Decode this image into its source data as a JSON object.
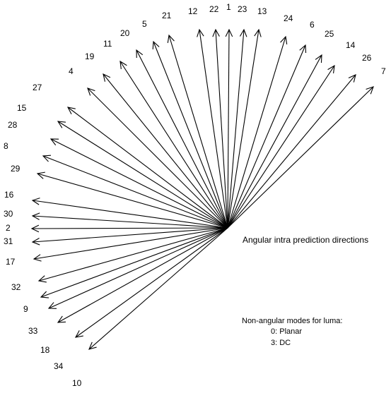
{
  "caption": "Angular intra prediction directions",
  "notes": {
    "title": "Non-angular modes for luma:",
    "modes": [
      "0: Planar",
      "3: DC"
    ]
  },
  "directions": [
    {
      "mode": "10"
    },
    {
      "mode": "34"
    },
    {
      "mode": "18"
    },
    {
      "mode": "33"
    },
    {
      "mode": "9"
    },
    {
      "mode": "32"
    },
    {
      "mode": "17"
    },
    {
      "mode": "31"
    },
    {
      "mode": "2"
    },
    {
      "mode": "30"
    },
    {
      "mode": "16"
    },
    {
      "mode": "29"
    },
    {
      "mode": "8"
    },
    {
      "mode": "28"
    },
    {
      "mode": "15"
    },
    {
      "mode": "27"
    },
    {
      "mode": "4"
    },
    {
      "mode": "19"
    },
    {
      "mode": "11"
    },
    {
      "mode": "20"
    },
    {
      "mode": "5"
    },
    {
      "mode": "21"
    },
    {
      "mode": "12"
    },
    {
      "mode": "22"
    },
    {
      "mode": "1"
    },
    {
      "mode": "23"
    },
    {
      "mode": "13"
    },
    {
      "mode": "24"
    },
    {
      "mode": "6"
    },
    {
      "mode": "25"
    },
    {
      "mode": "14"
    },
    {
      "mode": "26"
    },
    {
      "mode": "7"
    }
  ],
  "colors": {
    "stroke": "#000000",
    "background": "#ffffff"
  }
}
